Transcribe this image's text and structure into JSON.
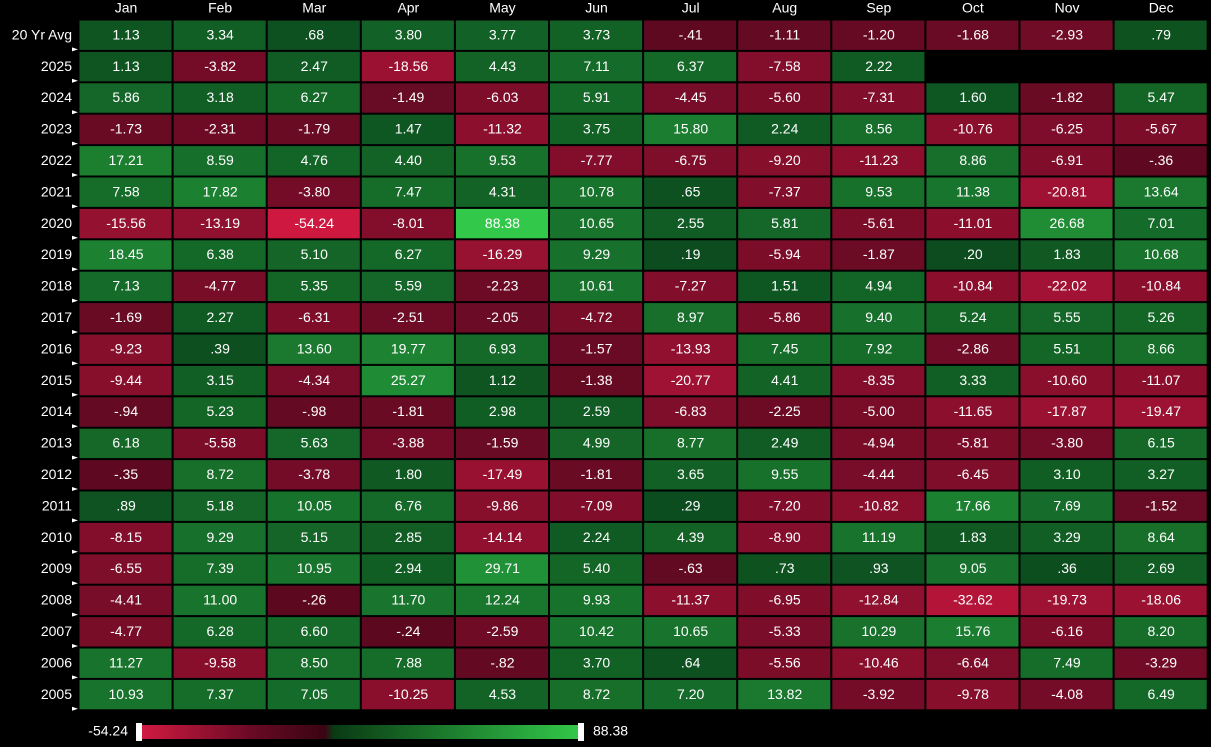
{
  "table": {
    "columns": [
      "Jan",
      "Feb",
      "Mar",
      "Apr",
      "May",
      "Jun",
      "Jul",
      "Aug",
      "Sep",
      "Oct",
      "Nov",
      "Dec"
    ],
    "rows": [
      {
        "label": "20 Yr Avg",
        "cells": [
          "1.13",
          "3.34",
          ".68",
          "3.80",
          "3.77",
          "3.73",
          "-.41",
          "-1.11",
          "-1.20",
          "-1.68",
          "-2.93",
          ".79"
        ]
      },
      {
        "label": "2025",
        "cells": [
          "1.13",
          "-3.82",
          "2.47",
          "-18.56",
          "4.43",
          "7.11",
          "6.37",
          "-7.58",
          "2.22"
        ]
      },
      {
        "label": "2024",
        "cells": [
          "5.86",
          "3.18",
          "6.27",
          "-1.49",
          "-6.03",
          "5.91",
          "-4.45",
          "-5.60",
          "-7.31",
          "1.60",
          "-1.82",
          "5.47"
        ]
      },
      {
        "label": "2023",
        "cells": [
          "-1.73",
          "-2.31",
          "-1.79",
          "1.47",
          "-11.32",
          "3.75",
          "15.80",
          "2.24",
          "8.56",
          "-10.76",
          "-6.25",
          "-5.67"
        ]
      },
      {
        "label": "2022",
        "cells": [
          "17.21",
          "8.59",
          "4.76",
          "4.40",
          "9.53",
          "-7.77",
          "-6.75",
          "-9.20",
          "-11.23",
          "8.86",
          "-6.91",
          "-.36"
        ]
      },
      {
        "label": "2021",
        "cells": [
          "7.58",
          "17.82",
          "-3.80",
          "7.47",
          "4.31",
          "10.78",
          ".65",
          "-7.37",
          "9.53",
          "11.38",
          "-20.81",
          "13.64"
        ]
      },
      {
        "label": "2020",
        "cells": [
          "-15.56",
          "-13.19",
          "-54.24",
          "-8.01",
          "88.38",
          "10.65",
          "2.55",
          "5.81",
          "-5.61",
          "-11.01",
          "26.68",
          "7.01"
        ]
      },
      {
        "label": "2019",
        "cells": [
          "18.45",
          "6.38",
          "5.10",
          "6.27",
          "-16.29",
          "9.29",
          ".19",
          "-5.94",
          "-1.87",
          ".20",
          "1.83",
          "10.68"
        ]
      },
      {
        "label": "2018",
        "cells": [
          "7.13",
          "-4.77",
          "5.35",
          "5.59",
          "-2.23",
          "10.61",
          "-7.27",
          "1.51",
          "4.94",
          "-10.84",
          "-22.02",
          "-10.84"
        ]
      },
      {
        "label": "2017",
        "cells": [
          "-1.69",
          "2.27",
          "-6.31",
          "-2.51",
          "-2.05",
          "-4.72",
          "8.97",
          "-5.86",
          "9.40",
          "5.24",
          "5.55",
          "5.26"
        ]
      },
      {
        "label": "2016",
        "cells": [
          "-9.23",
          ".39",
          "13.60",
          "19.77",
          "6.93",
          "-1.57",
          "-13.93",
          "7.45",
          "7.92",
          "-2.86",
          "5.51",
          "8.66"
        ]
      },
      {
        "label": "2015",
        "cells": [
          "-9.44",
          "3.15",
          "-4.34",
          "25.27",
          "1.12",
          "-1.38",
          "-20.77",
          "4.41",
          "-8.35",
          "3.33",
          "-10.60",
          "-11.07"
        ]
      },
      {
        "label": "2014",
        "cells": [
          "-.94",
          "5.23",
          "-.98",
          "-1.81",
          "2.98",
          "2.59",
          "-6.83",
          "-2.25",
          "-5.00",
          "-11.65",
          "-17.87",
          "-19.47"
        ]
      },
      {
        "label": "2013",
        "cells": [
          "6.18",
          "-5.58",
          "5.63",
          "-3.88",
          "-1.59",
          "4.99",
          "8.77",
          "2.49",
          "-4.94",
          "-5.81",
          "-3.80",
          "6.15"
        ]
      },
      {
        "label": "2012",
        "cells": [
          "-.35",
          "8.72",
          "-3.78",
          "1.80",
          "-17.49",
          "-1.81",
          "3.65",
          "9.55",
          "-4.44",
          "-6.45",
          "3.10",
          "3.27"
        ]
      },
      {
        "label": "2011",
        "cells": [
          ".89",
          "5.18",
          "10.05",
          "6.76",
          "-9.86",
          "-7.09",
          ".29",
          "-7.20",
          "-10.82",
          "17.66",
          "7.69",
          "-1.52"
        ]
      },
      {
        "label": "2010",
        "cells": [
          "-8.15",
          "9.29",
          "5.15",
          "2.85",
          "-14.14",
          "2.24",
          "4.39",
          "-8.90",
          "11.19",
          "1.83",
          "3.29",
          "8.64"
        ]
      },
      {
        "label": "2009",
        "cells": [
          "-6.55",
          "7.39",
          "10.95",
          "2.94",
          "29.71",
          "5.40",
          "-.63",
          ".73",
          ".93",
          "9.05",
          ".36",
          "2.69"
        ]
      },
      {
        "label": "2008",
        "cells": [
          "-4.41",
          "11.00",
          "-.26",
          "11.70",
          "12.24",
          "9.93",
          "-11.37",
          "-6.95",
          "-12.84",
          "-32.62",
          "-19.73",
          "-18.06"
        ]
      },
      {
        "label": "2007",
        "cells": [
          "-4.77",
          "6.28",
          "6.60",
          "-.24",
          "-2.59",
          "10.42",
          "10.65",
          "-5.33",
          "10.29",
          "15.76",
          "-6.16",
          "8.20"
        ]
      },
      {
        "label": "2006",
        "cells": [
          "11.27",
          "-9.58",
          "8.50",
          "7.88",
          "-.82",
          "3.70",
          ".64",
          "-5.56",
          "-10.46",
          "-6.64",
          "7.49",
          "-3.29"
        ]
      },
      {
        "label": "2005",
        "cells": [
          "10.93",
          "7.37",
          "7.05",
          "-10.25",
          "4.53",
          "8.72",
          "7.20",
          "13.82",
          "-3.92",
          "-9.78",
          "-4.08",
          "6.49"
        ]
      }
    ]
  },
  "scale": {
    "min": "-54.24",
    "max": "88.38"
  }
}
